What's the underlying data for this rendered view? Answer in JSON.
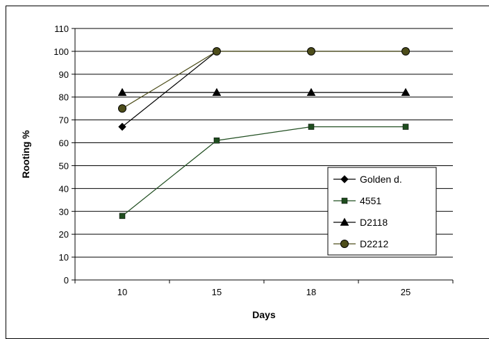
{
  "chart_data": {
    "type": "line",
    "title": "",
    "xlabel": "Days",
    "ylabel": "Rooting %",
    "categories": [
      "10",
      "15",
      "18",
      "25"
    ],
    "ylim": [
      0,
      110
    ],
    "yticks": [
      0,
      10,
      20,
      30,
      40,
      50,
      60,
      70,
      80,
      90,
      100,
      110
    ],
    "grid": "horizontal",
    "legend_position": "bottom-right",
    "series": [
      {
        "name": "Golden d.",
        "values": [
          67,
          100,
          100,
          100
        ],
        "color": "#000000",
        "marker": "diamond"
      },
      {
        "name": "4551",
        "values": [
          28,
          61,
          67,
          67
        ],
        "color": "#1f4d1f",
        "marker": "square"
      },
      {
        "name": "D2118",
        "values": [
          82,
          82,
          82,
          82
        ],
        "color": "#000000",
        "marker": "triangle"
      },
      {
        "name": "D2212",
        "values": [
          75,
          100,
          100,
          100
        ],
        "color": "#4d4d1a",
        "marker": "circle"
      }
    ]
  }
}
